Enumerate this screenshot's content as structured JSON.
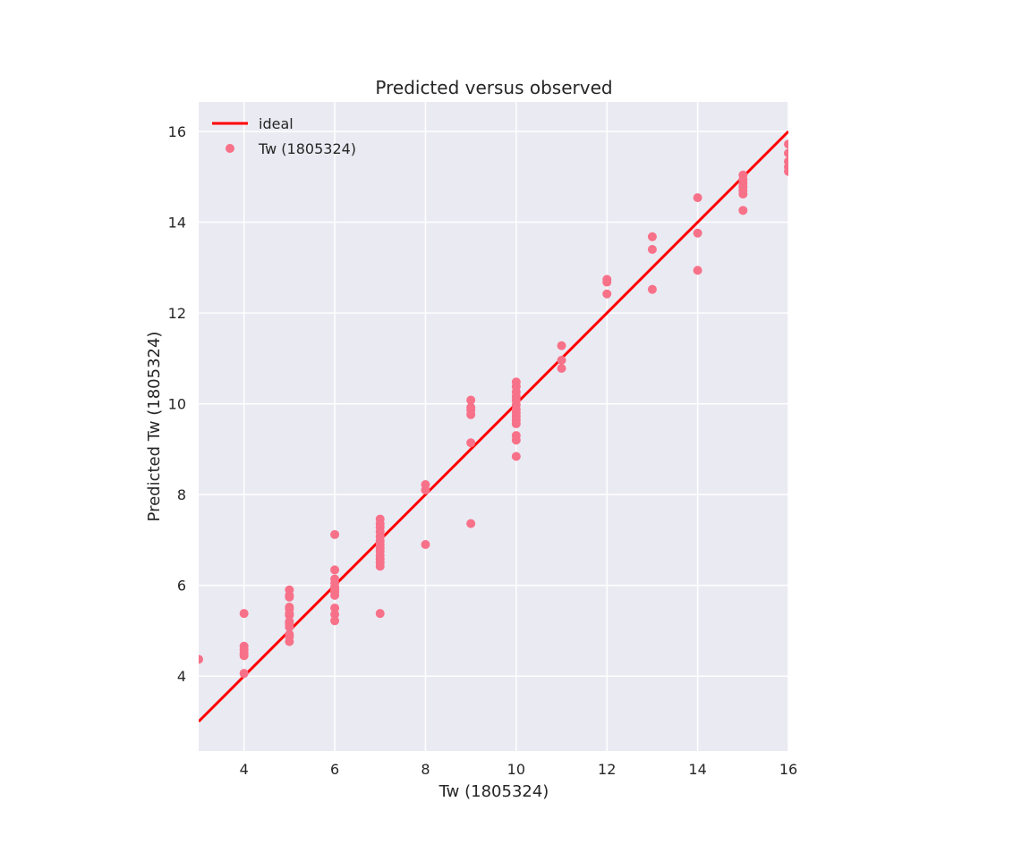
{
  "chart_data": {
    "type": "scatter",
    "title": "Predicted versus observed",
    "xlabel": "Tw (1805324)",
    "ylabel": "Predicted Tw (1805324)",
    "xlim": [
      3,
      16
    ],
    "ylim": [
      2.35,
      16.65
    ],
    "xticks": [
      4,
      6,
      8,
      10,
      12,
      14,
      16
    ],
    "yticks": [
      4,
      6,
      8,
      10,
      12,
      14,
      16
    ],
    "grid": true,
    "legend_position": "top-left",
    "colors": {
      "background": "#eaeaf2",
      "grid": "#ffffff",
      "ideal": "#ff0000",
      "points": "#f77189"
    },
    "series": [
      {
        "name": "ideal",
        "type": "line",
        "x": [
          3,
          16
        ],
        "y": [
          3,
          16
        ]
      },
      {
        "name": "Tw (1805324)",
        "type": "scatter",
        "points": [
          [
            3,
            4.37
          ],
          [
            4,
            5.38
          ],
          [
            4,
            4.66
          ],
          [
            4,
            4.58
          ],
          [
            4,
            4.5
          ],
          [
            4,
            4.45
          ],
          [
            4,
            4.06
          ],
          [
            5,
            5.9
          ],
          [
            5,
            5.78
          ],
          [
            5,
            5.74
          ],
          [
            5,
            5.52
          ],
          [
            5,
            5.48
          ],
          [
            5,
            5.38
          ],
          [
            5,
            5.34
          ],
          [
            5,
            5.2
          ],
          [
            5,
            5.15
          ],
          [
            5,
            5.08
          ],
          [
            5,
            4.92
          ],
          [
            5,
            4.87
          ],
          [
            5,
            4.76
          ],
          [
            6,
            7.12
          ],
          [
            6,
            6.34
          ],
          [
            6,
            6.14
          ],
          [
            6,
            6.05
          ],
          [
            6,
            5.96
          ],
          [
            6,
            5.9
          ],
          [
            6,
            5.85
          ],
          [
            6,
            5.78
          ],
          [
            6,
            5.5
          ],
          [
            6,
            5.36
          ],
          [
            6,
            5.22
          ],
          [
            7,
            7.46
          ],
          [
            7,
            7.36
          ],
          [
            7,
            7.28
          ],
          [
            7,
            7.18
          ],
          [
            7,
            7.08
          ],
          [
            7,
            6.98
          ],
          [
            7,
            6.9
          ],
          [
            7,
            6.82
          ],
          [
            7,
            6.75
          ],
          [
            7,
            6.66
          ],
          [
            7,
            6.58
          ],
          [
            7,
            6.5
          ],
          [
            7,
            6.42
          ],
          [
            7,
            5.38
          ],
          [
            8,
            8.22
          ],
          [
            8,
            8.1
          ],
          [
            8,
            6.9
          ],
          [
            9,
            10.08
          ],
          [
            9,
            9.92
          ],
          [
            9,
            9.86
          ],
          [
            9,
            9.76
          ],
          [
            9,
            9.14
          ],
          [
            9,
            7.36
          ],
          [
            10,
            10.48
          ],
          [
            10,
            10.38
          ],
          [
            10,
            10.26
          ],
          [
            10,
            10.16
          ],
          [
            10,
            10.08
          ],
          [
            10,
            9.98
          ],
          [
            10,
            9.88
          ],
          [
            10,
            9.8
          ],
          [
            10,
            9.72
          ],
          [
            10,
            9.64
          ],
          [
            10,
            9.56
          ],
          [
            10,
            9.3
          ],
          [
            10,
            9.2
          ],
          [
            10,
            8.84
          ],
          [
            11,
            11.28
          ],
          [
            11,
            10.96
          ],
          [
            11,
            10.78
          ],
          [
            12,
            12.74
          ],
          [
            12,
            12.68
          ],
          [
            12,
            12.42
          ],
          [
            13,
            13.68
          ],
          [
            13,
            13.4
          ],
          [
            13,
            12.52
          ],
          [
            14,
            14.54
          ],
          [
            14,
            13.76
          ],
          [
            14,
            12.94
          ],
          [
            15,
            15.04
          ],
          [
            15,
            14.94
          ],
          [
            15,
            14.86
          ],
          [
            15,
            14.78
          ],
          [
            15,
            14.7
          ],
          [
            15,
            14.62
          ],
          [
            15,
            14.26
          ],
          [
            16,
            15.72
          ],
          [
            16,
            15.52
          ],
          [
            16,
            15.34
          ],
          [
            16,
            15.22
          ],
          [
            16,
            15.12
          ]
        ]
      }
    ]
  }
}
